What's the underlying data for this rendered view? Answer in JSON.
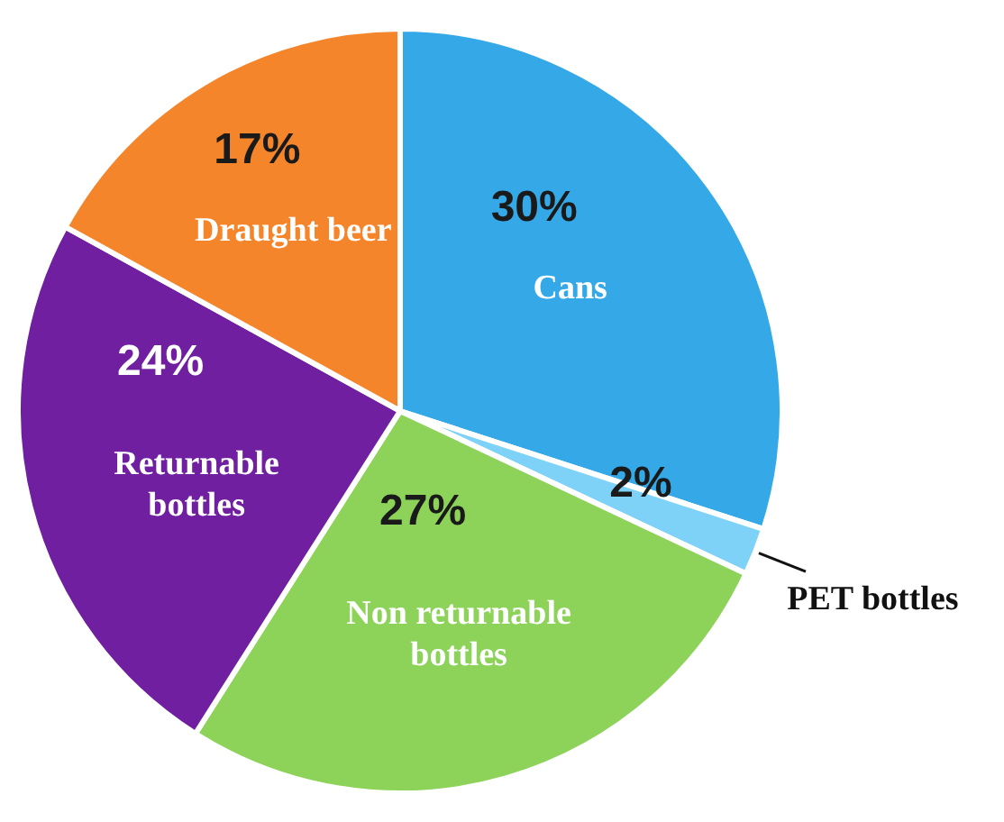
{
  "chart_data": {
    "type": "pie",
    "categories": [
      "Cans",
      "PET bottles",
      "Non returnable bottles",
      "Returnable bottles",
      "Draught beer"
    ],
    "values": [
      30,
      2,
      27,
      24,
      17
    ],
    "value_labels": [
      "30%",
      "2%",
      "27%",
      "24%",
      "17%"
    ],
    "colors": [
      "#35a9e8",
      "#7fd2f7",
      "#8dd35a",
      "#6f1fa0",
      "#f5852a"
    ]
  }
}
